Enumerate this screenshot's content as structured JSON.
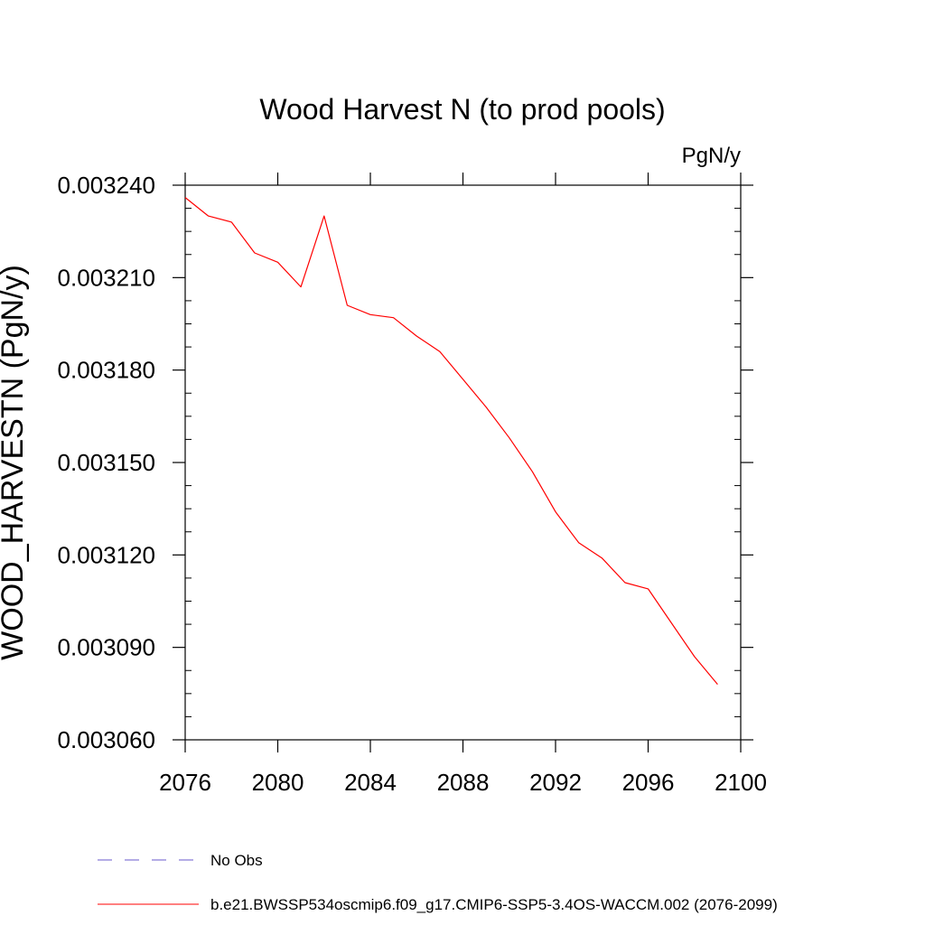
{
  "chart_data": {
    "type": "line",
    "title": "Wood Harvest N (to prod pools)",
    "units": "PgN/y",
    "xlabel": "",
    "ylabel": "WOOD_HARVESTN  (PgN/y)",
    "xlim": [
      2076,
      2100
    ],
    "ylim": [
      0.00306,
      0.00324
    ],
    "x_ticks": [
      2076,
      2080,
      2084,
      2088,
      2092,
      2096,
      2100
    ],
    "x_tick_labels": [
      "2076",
      "2080",
      "2084",
      "2088",
      "2092",
      "2096",
      "2100"
    ],
    "y_ticks": [
      0.00306,
      0.00309,
      0.00312,
      0.00315,
      0.00318,
      0.00321,
      0.00324
    ],
    "y_tick_labels": [
      "0.003060",
      "0.003090",
      "0.003120",
      "0.003150",
      "0.003180",
      "0.003210",
      "0.003240"
    ],
    "grid": false,
    "legend_position": "bottom",
    "legend": [
      {
        "label": "No Obs",
        "color": "#6a5acd",
        "dash": "dashed"
      },
      {
        "label": "b.e21.BWSSP534oscmip6.f09_g17.CMIP6-SSP5-3.4OS-WACCM.002 (2076-2099)",
        "color": "#ff0000",
        "dash": "solid"
      }
    ],
    "series": [
      {
        "name": "b.e21.BWSSP534oscmip6.f09_g17.CMIP6-SSP5-3.4OS-WACCM.002 (2076-2099)",
        "color": "#ff0000",
        "x": [
          2076,
          2077,
          2078,
          2079,
          2080,
          2081,
          2082,
          2083,
          2084,
          2085,
          2086,
          2087,
          2088,
          2089,
          2090,
          2091,
          2092,
          2093,
          2094,
          2095,
          2096,
          2097,
          2098,
          2099
        ],
        "values": [
          0.003236,
          0.00323,
          0.003228,
          0.003218,
          0.003215,
          0.003207,
          0.00323,
          0.003201,
          0.003198,
          0.003197,
          0.003191,
          0.003186,
          0.003177,
          0.003168,
          0.003158,
          0.003147,
          0.003134,
          0.003124,
          0.003119,
          0.003111,
          0.003109,
          0.003098,
          0.003087,
          0.003078
        ]
      }
    ]
  }
}
